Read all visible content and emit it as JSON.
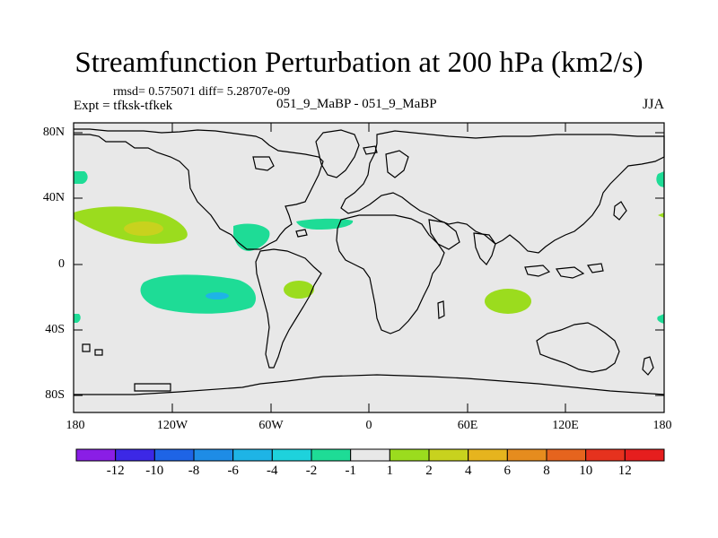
{
  "title": "Streamfunction Perturbation at 200 hPa (km2/s)",
  "stats": "rmsd= 0.575071 diff= 5.28707e-09",
  "experiment": "Expt = tfksk-tfkek",
  "experiment_pair": "051_9_MaBP - 051_9_MaBP",
  "season": "JJA",
  "axes": {
    "lat_labels": [
      "80N",
      "40N",
      "0",
      "40S",
      "80S"
    ],
    "lon_labels": [
      "180",
      "120W",
      "60W",
      "0",
      "60E",
      "120E",
      "180"
    ]
  },
  "colorbar": {
    "labels": [
      "-12",
      "-10",
      "-8",
      "-6",
      "-4",
      "-2",
      "-1",
      "1",
      "2",
      "4",
      "6",
      "8",
      "10",
      "12"
    ],
    "colors": [
      "#8a1ee6",
      "#3c28e6",
      "#1e64e6",
      "#1e8ce6",
      "#1eb4e6",
      "#1ed2dc",
      "#1edc96",
      "#e8e8e8",
      "#9bdc1e",
      "#c8d21e",
      "#e6b41e",
      "#e68c1e",
      "#e6641e",
      "#e6321e",
      "#e61e1e"
    ]
  },
  "field_colors": {
    "background": "#e8e8e8",
    "coast": "#000000"
  }
}
